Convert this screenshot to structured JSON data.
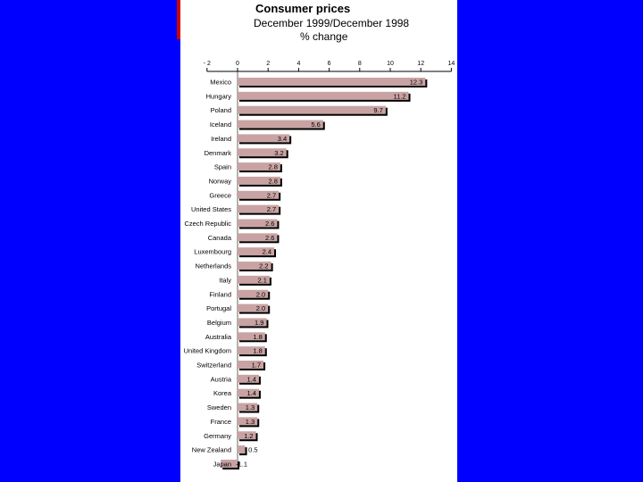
{
  "chart_data": {
    "type": "bar",
    "orientation": "horizontal",
    "title": "Consumer prices",
    "subtitle": "December 1999/December 1998",
    "unit_label": "% change",
    "xlim": [
      -2,
      14
    ],
    "ticks": [
      "- 2",
      "0",
      "2",
      "4",
      "6",
      "8",
      "10",
      "12",
      "14"
    ],
    "tick_values": [
      -2,
      0,
      2,
      4,
      6,
      8,
      10,
      12,
      14
    ],
    "categories": [
      "Mexico",
      "Hungary",
      "Poland",
      "Iceland",
      "Ireland",
      "Denmark",
      "Spain",
      "Norway",
      "Greece",
      "United States",
      "Czech Republic",
      "Canada",
      "Luxembourg",
      "Netherlands",
      "Italy",
      "Finland",
      "Portugal",
      "Belgium",
      "Australia",
      "United Kingdom",
      "Switzerland",
      "Austria",
      "Korea",
      "Sweden",
      "France",
      "Germany",
      "New Zealand",
      "Japan"
    ],
    "values": [
      12.3,
      11.2,
      9.7,
      5.6,
      3.4,
      3.2,
      2.8,
      2.8,
      2.7,
      2.7,
      2.6,
      2.6,
      2.4,
      2.2,
      2.1,
      2.0,
      2.0,
      1.9,
      1.8,
      1.8,
      1.7,
      1.4,
      1.4,
      1.3,
      1.3,
      1.2,
      0.5,
      -1.1
    ],
    "value_labels": [
      "12.3",
      "11.2",
      "9.7",
      "5.6",
      "3.4",
      "3.2",
      "2.8",
      "2.8",
      "2.7",
      "2.7",
      "2.6",
      "2.6",
      "2.4",
      "2.2",
      "2.1",
      "2.0",
      "2.0",
      "1.9",
      "1.8",
      "1.8",
      "1.7",
      "1.4",
      "1.4",
      "1.3",
      "1.3",
      "1.2",
      "0.5",
      "-1.1"
    ],
    "colors": {
      "bar": "#c9a3a3",
      "shadow": "#000000",
      "text": "#000000"
    }
  },
  "colors": {
    "background": "#0000ff",
    "panel": "#ffffff",
    "edge": "#cc0000"
  }
}
